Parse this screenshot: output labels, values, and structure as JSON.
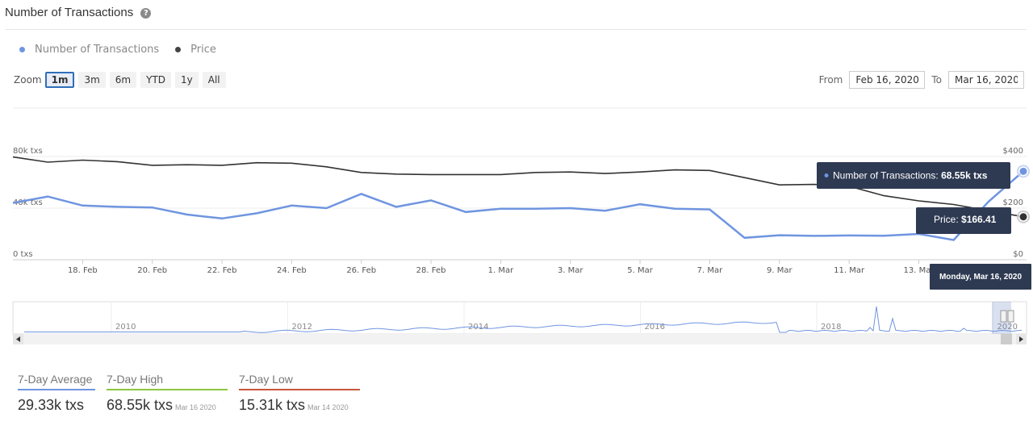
{
  "header": {
    "title": "Number of Transactions"
  },
  "legend": [
    {
      "label": "Number of Transactions",
      "color": "#6f95e0"
    },
    {
      "label": "Price",
      "color": "#444444"
    }
  ],
  "zoom": {
    "label": "Zoom",
    "buttons": [
      "1m",
      "3m",
      "6m",
      "YTD",
      "1y",
      "All"
    ],
    "active": "1m"
  },
  "range": {
    "from_label": "From",
    "from_value": "Feb 16, 2020",
    "to_label": "To",
    "to_value": "Mar 16, 2020"
  },
  "tooltip": {
    "date": "Monday, Mar 16, 2020",
    "series_label": "Number of Transactions: ",
    "series_value": "68.55k txs",
    "price_label": "Price: ",
    "price_value": "$166.41"
  },
  "stats": [
    {
      "label": "7-Day Average",
      "value": "29.33k txs",
      "date": "",
      "color": "#6f95e0"
    },
    {
      "label": "7-Day High",
      "value": "68.55k txs",
      "date": "Mar 16 2020",
      "color": "#8dc63f"
    },
    {
      "label": "7-Day Low",
      "value": "15.31k txs",
      "date": "Mar 14 2020",
      "color": "#c9553a"
    }
  ],
  "chart_data": {
    "type": "line",
    "x": [
      "Feb 16",
      "Feb 17",
      "Feb 18",
      "Feb 19",
      "Feb 20",
      "Feb 21",
      "Feb 22",
      "Feb 23",
      "Feb 24",
      "Feb 25",
      "Feb 26",
      "Feb 27",
      "Feb 28",
      "Feb 29",
      "Mar 1",
      "Mar 2",
      "Mar 3",
      "Mar 4",
      "Mar 5",
      "Mar 6",
      "Mar 7",
      "Mar 8",
      "Mar 9",
      "Mar 10",
      "Mar 11",
      "Mar 12",
      "Mar 13",
      "Mar 14",
      "Mar 15",
      "Mar 16"
    ],
    "x_ticks": [
      "18. Feb",
      "20. Feb",
      "22. Feb",
      "24. Feb",
      "26. Feb",
      "28. Feb",
      "1. Mar",
      "3. Mar",
      "5. Mar",
      "7. Mar",
      "9. Mar",
      "11. Mar",
      "13. Mar"
    ],
    "series": [
      {
        "name": "Number of Transactions",
        "axis": "left",
        "color": "#6f95e0",
        "values": [
          44,
          49,
          42,
          41,
          40.5,
          35,
          32,
          36,
          42,
          40,
          51,
          41,
          46,
          37,
          39.5,
          39.5,
          40,
          38,
          43,
          39.5,
          39,
          17,
          19,
          18.5,
          18.8,
          18.6,
          20,
          15.31,
          45,
          68.55
        ]
      },
      {
        "name": "Price",
        "axis": "right",
        "color": "#333333",
        "values": [
          398,
          378,
          386,
          380,
          366,
          368,
          366,
          376,
          374,
          360,
          338,
          332,
          330,
          330,
          330,
          338,
          340,
          334,
          340,
          348,
          346,
          318,
          290,
          292,
          285,
          248,
          228,
          214,
          190,
          166.41
        ]
      }
    ],
    "y_left": {
      "ticks": [
        "0 txs",
        "40k txs",
        "80k txs"
      ],
      "tick_values": [
        0,
        40,
        80
      ],
      "range": [
        0,
        80
      ]
    },
    "y_right": {
      "ticks": [
        "$0",
        "$200",
        "$400"
      ],
      "tick_values": [
        0,
        200,
        400
      ],
      "range": [
        0,
        400
      ]
    },
    "navigator": {
      "years": [
        "2010",
        "2012",
        "2014",
        "2016",
        "2018",
        "2020"
      ]
    }
  }
}
